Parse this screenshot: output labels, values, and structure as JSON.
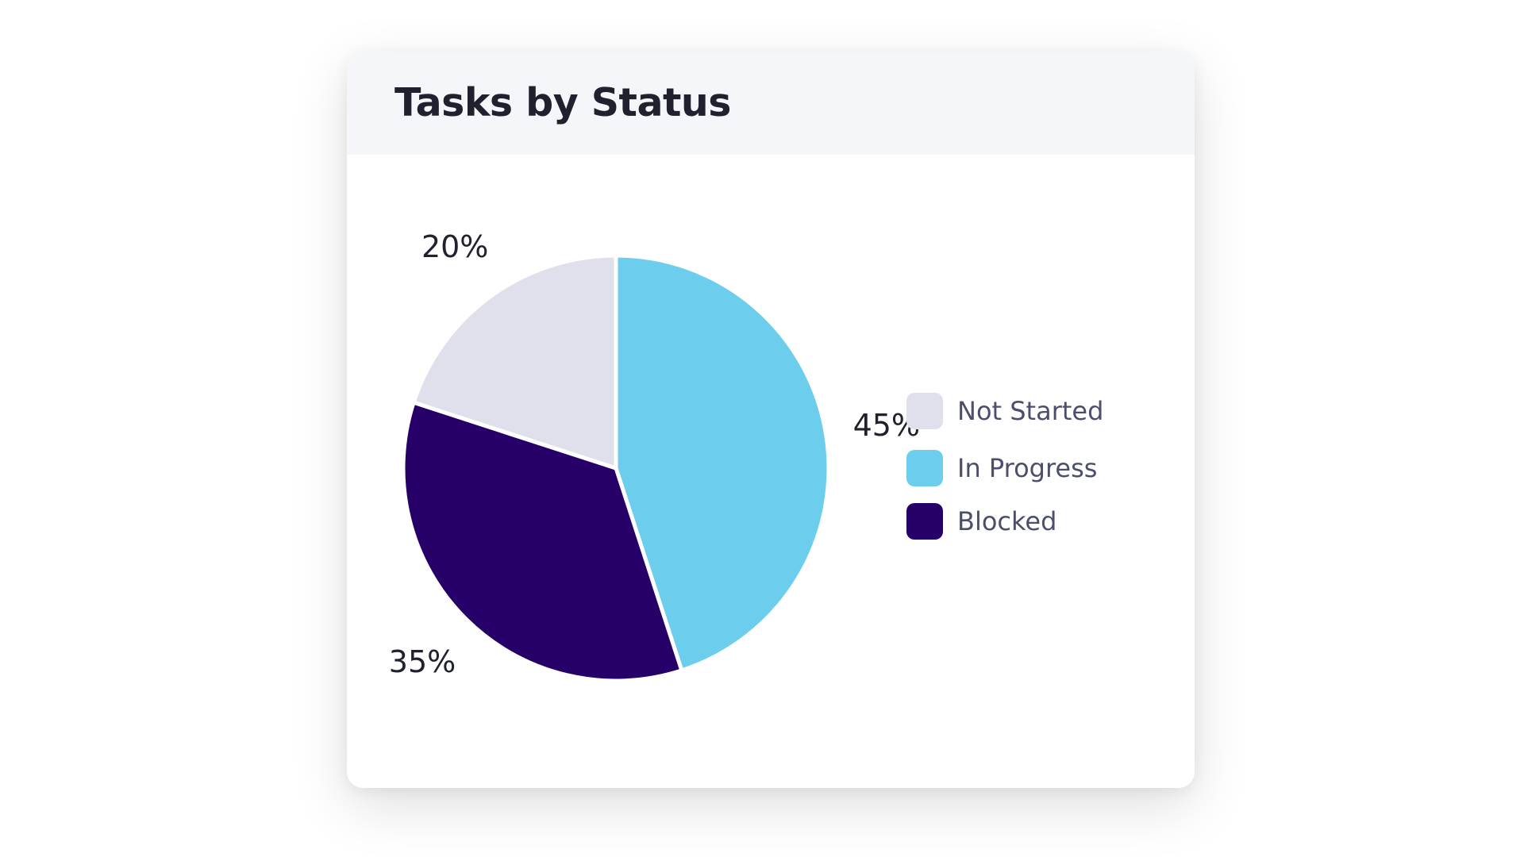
{
  "chart_data": {
    "type": "pie",
    "title": "Tasks by Status",
    "slices": [
      {
        "name": "In Progress",
        "value": 45,
        "label": "45%",
        "color": "#6dcdec"
      },
      {
        "name": "Blocked",
        "value": 35,
        "label": "35%",
        "color": "#260068"
      },
      {
        "name": "Not Started",
        "value": 20,
        "label": "20%",
        "color": "#dfe0ec"
      }
    ],
    "start_angle": "12 o'clock",
    "direction": "clockwise",
    "legend": {
      "placement": "right",
      "order": [
        "Not Started",
        "In Progress",
        "Blocked"
      ]
    }
  }
}
